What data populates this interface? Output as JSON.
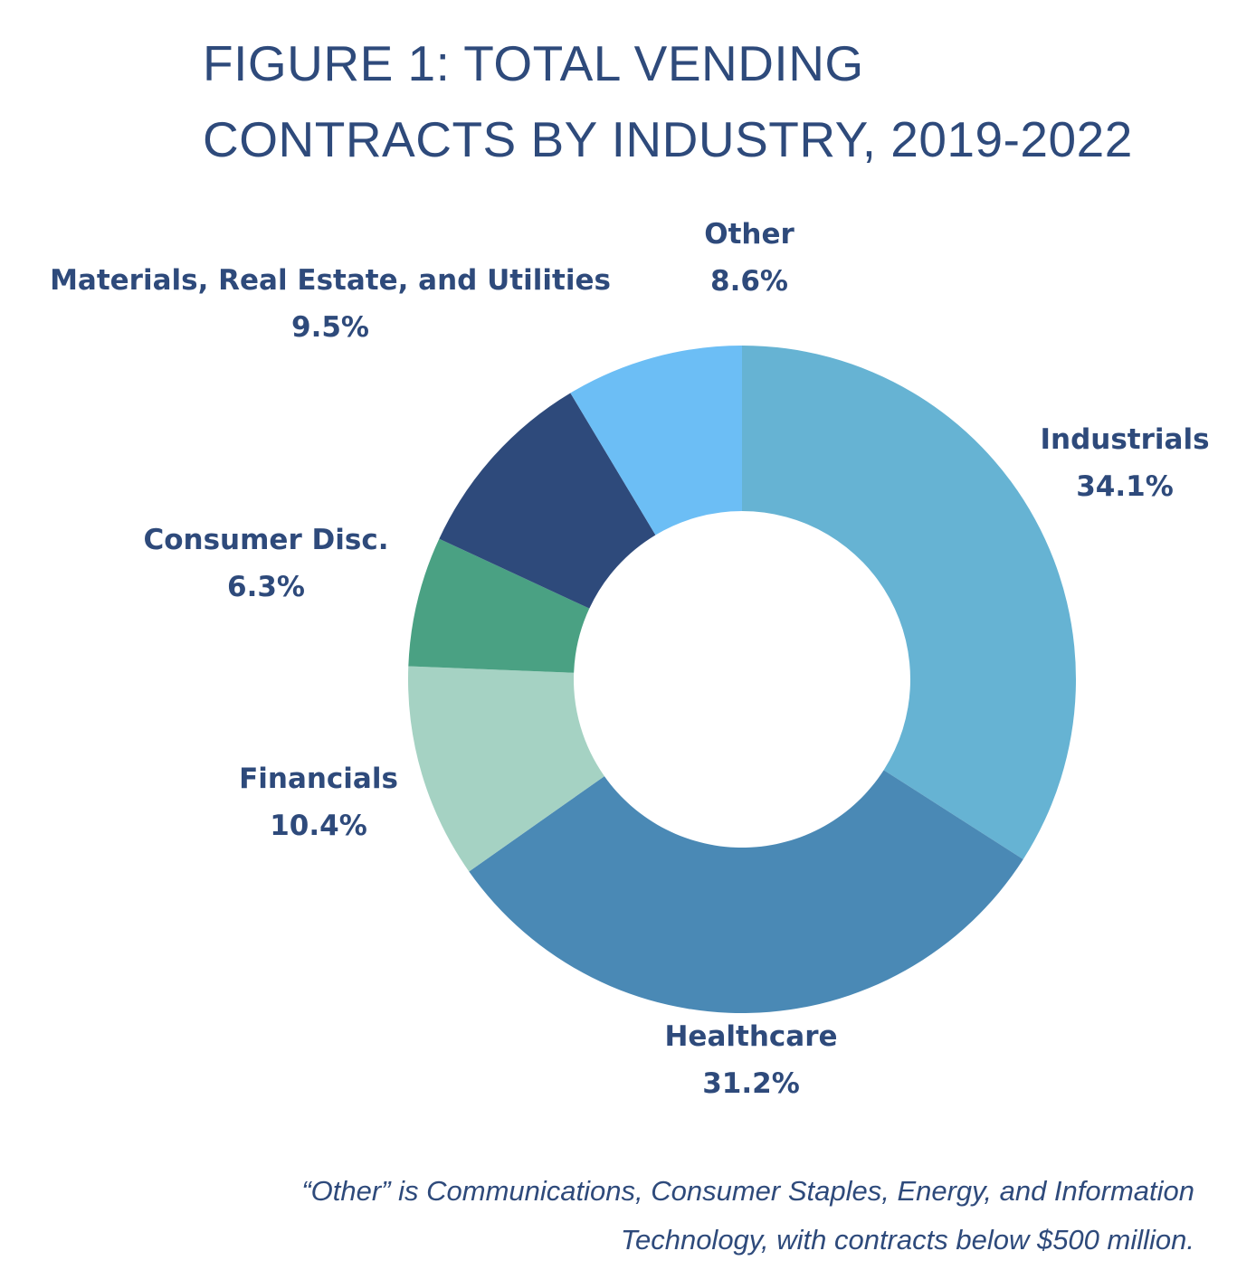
{
  "chart_data": {
    "type": "pie",
    "donut": true,
    "title": [
      "FIGURE 1: TOTAL VENDING",
      "CONTRACTS BY INDUSTRY, 2019-2022"
    ],
    "slices": [
      {
        "label": "Industrials",
        "value": 34.1,
        "display": "34.1%",
        "color": "#66b3d3"
      },
      {
        "label": "Healthcare",
        "value": 31.2,
        "display": "31.2%",
        "color": "#4a89b5"
      },
      {
        "label": "Financials",
        "value": 10.4,
        "display": "10.4%",
        "color": "#a5d2c3"
      },
      {
        "label": "Consumer Disc.",
        "value": 6.3,
        "display": "6.3%",
        "color": "#4aa183"
      },
      {
        "label": "Materials, Real Estate, and Utilities",
        "value": 9.5,
        "display": "9.5%",
        "color": "#2e4a7b"
      },
      {
        "label": "Other",
        "value": 8.6,
        "display": "8.6%",
        "color": "#6cbef5"
      }
    ],
    "start": "top",
    "direction": "clockwise",
    "footnote": [
      "“Other” is Communications, Consumer Staples, Energy, and Information",
      "Technology, with contracts below $500 million."
    ]
  }
}
